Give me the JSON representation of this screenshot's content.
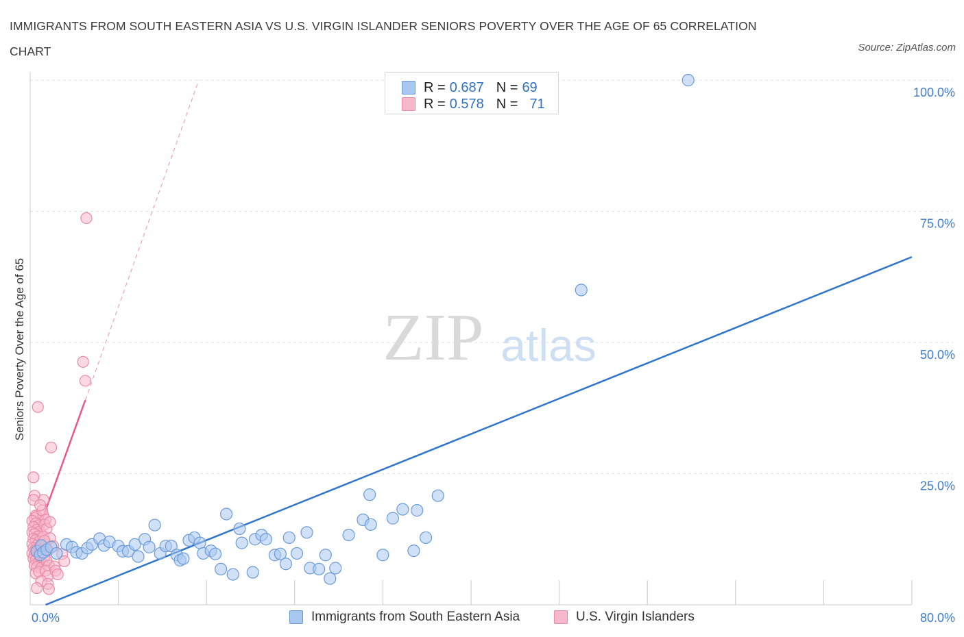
{
  "title": "IMMIGRANTS FROM SOUTH EASTERN ASIA VS U.S. VIRGIN ISLANDER SENIORS POVERTY OVER THE AGE OF 65 CORRELATION CHART",
  "source": "Source: ZipAtlas.com",
  "watermark": {
    "zip": "ZIP",
    "atlas": "atlas"
  },
  "colors": {
    "blue_fill": "#a9c8f0",
    "blue_stroke": "#6a9ad8",
    "blue_line": "#2f75cc",
    "pink_fill": "#f7b8cb",
    "pink_stroke": "#e88aa8",
    "pink_line": "#e8588a",
    "tick_label": "#3f7bc8",
    "grid": "#e2e2e2"
  },
  "legend_top": [
    {
      "r_label": "R =",
      "r_value": "0.687",
      "n_label": "N =",
      "n_value": "69"
    },
    {
      "r_label": "R =",
      "r_value": "0.578",
      "n_label": "N =",
      "n_value": "71"
    }
  ],
  "legend_bottom": [
    "Immigrants from South Eastern Asia",
    "U.S. Virgin Islanders"
  ],
  "chart_data": {
    "type": "scatter",
    "title": "IMMIGRANTS FROM SOUTH EASTERN ASIA VS U.S. VIRGIN ISLANDER SENIORS POVERTY OVER THE AGE OF 65 CORRELATION CHART",
    "xlabel": "",
    "ylabel": "Seniors Poverty Over the Age of 65",
    "xlim": [
      0,
      80
    ],
    "ylim": [
      0,
      100
    ],
    "x_tick_labels": [
      "0.0%",
      "80.0%"
    ],
    "y_ticks": [
      25,
      50,
      75,
      100
    ],
    "y_tick_labels": [
      "25.0%",
      "50.0%",
      "75.0%",
      "100.0%"
    ],
    "grid": true,
    "legend_position": "top-center",
    "series": [
      {
        "name": "Immigrants from South Eastern Asia",
        "r": 0.687,
        "n": 69,
        "trend": {
          "x0": 1.4,
          "y0": 0,
          "x1": 80,
          "y1": 66.3
        },
        "points": [
          [
            0.6,
            10.2
          ],
          [
            0.9,
            9.5
          ],
          [
            1.0,
            11.3
          ],
          [
            1.2,
            10.0
          ],
          [
            1.5,
            10.5
          ],
          [
            1.9,
            11.0
          ],
          [
            2.4,
            9.8
          ],
          [
            3.3,
            11.5
          ],
          [
            3.8,
            11.0
          ],
          [
            4.2,
            10.0
          ],
          [
            4.7,
            9.8
          ],
          [
            5.2,
            10.8
          ],
          [
            5.6,
            11.5
          ],
          [
            6.3,
            12.6
          ],
          [
            6.7,
            11.3
          ],
          [
            7.2,
            12.0
          ],
          [
            8.0,
            11.2
          ],
          [
            8.4,
            10.2
          ],
          [
            8.9,
            10.2
          ],
          [
            9.5,
            11.5
          ],
          [
            9.8,
            9.2
          ],
          [
            10.4,
            12.5
          ],
          [
            10.8,
            11.0
          ],
          [
            11.3,
            15.2
          ],
          [
            11.8,
            9.8
          ],
          [
            12.3,
            11.2
          ],
          [
            12.8,
            11.2
          ],
          [
            13.3,
            9.5
          ],
          [
            13.6,
            8.5
          ],
          [
            13.9,
            8.8
          ],
          [
            14.4,
            12.3
          ],
          [
            14.9,
            12.8
          ],
          [
            15.4,
            11.8
          ],
          [
            15.7,
            9.8
          ],
          [
            16.4,
            10.3
          ],
          [
            16.8,
            9.7
          ],
          [
            17.3,
            6.8
          ],
          [
            17.8,
            17.3
          ],
          [
            18.4,
            5.8
          ],
          [
            19.0,
            14.5
          ],
          [
            19.2,
            11.8
          ],
          [
            20.2,
            6.2
          ],
          [
            20.4,
            12.5
          ],
          [
            21.0,
            13.3
          ],
          [
            21.4,
            12.5
          ],
          [
            22.2,
            9.5
          ],
          [
            22.7,
            9.7
          ],
          [
            23.2,
            7.8
          ],
          [
            23.5,
            12.8
          ],
          [
            24.2,
            9.8
          ],
          [
            25.1,
            13.8
          ],
          [
            25.4,
            7.0
          ],
          [
            26.2,
            6.8
          ],
          [
            26.8,
            9.5
          ],
          [
            27.2,
            5.0
          ],
          [
            27.7,
            7.0
          ],
          [
            28.9,
            13.3
          ],
          [
            30.2,
            16.2
          ],
          [
            30.9,
            15.3
          ],
          [
            30.8,
            21.0
          ],
          [
            32.0,
            9.5
          ],
          [
            32.9,
            16.5
          ],
          [
            33.8,
            18.2
          ],
          [
            34.8,
            10.3
          ],
          [
            35.1,
            18.0
          ],
          [
            35.9,
            12.8
          ],
          [
            37.0,
            20.8
          ],
          [
            50.0,
            60.0
          ],
          [
            59.7,
            100.0
          ]
        ]
      },
      {
        "name": "U.S. Virgin Islanders",
        "r": 0.578,
        "n": 71,
        "trend_solid": {
          "x0": 0.2,
          "y0": 11.0,
          "x1": 5.0,
          "y1": 39.0
        },
        "trend_dashed": {
          "x0": 5.0,
          "y0": 39.0,
          "x1": 15.3,
          "y1": 100.0
        },
        "points": [
          [
            0.3,
            24.3
          ],
          [
            0.4,
            20.8
          ],
          [
            0.3,
            20.0
          ],
          [
            0.5,
            17.0
          ],
          [
            0.4,
            16.5
          ],
          [
            0.6,
            16.8
          ],
          [
            0.2,
            16.0
          ],
          [
            0.5,
            15.5
          ],
          [
            0.8,
            15.2
          ],
          [
            0.3,
            14.8
          ],
          [
            0.6,
            14.3
          ],
          [
            0.9,
            14.0
          ],
          [
            0.2,
            13.8
          ],
          [
            0.4,
            13.5
          ],
          [
            0.7,
            13.0
          ],
          [
            0.3,
            12.6
          ],
          [
            0.5,
            12.3
          ],
          [
            0.8,
            12.0
          ],
          [
            0.2,
            11.6
          ],
          [
            0.6,
            11.3
          ],
          [
            0.9,
            11.0
          ],
          [
            0.3,
            10.8
          ],
          [
            0.5,
            10.5
          ],
          [
            0.7,
            10.2
          ],
          [
            1.0,
            10.0
          ],
          [
            0.2,
            9.8
          ],
          [
            0.4,
            9.5
          ],
          [
            0.6,
            9.2
          ],
          [
            0.9,
            9.0
          ],
          [
            0.3,
            8.8
          ],
          [
            0.5,
            8.5
          ],
          [
            0.8,
            8.2
          ],
          [
            1.1,
            8.0
          ],
          [
            0.4,
            7.5
          ],
          [
            0.6,
            7.2
          ],
          [
            1.0,
            7.0
          ],
          [
            0.5,
            6.0
          ],
          [
            0.8,
            6.3
          ],
          [
            1.2,
            17.0
          ],
          [
            1.1,
            18.0
          ],
          [
            1.4,
            16.2
          ],
          [
            1.3,
            15.3
          ],
          [
            1.5,
            14.5
          ],
          [
            1.2,
            13.0
          ],
          [
            1.4,
            11.5
          ],
          [
            1.6,
            10.3
          ],
          [
            1.3,
            9.2
          ],
          [
            1.5,
            8.3
          ],
          [
            1.7,
            7.5
          ],
          [
            1.4,
            6.5
          ],
          [
            1.6,
            5.5
          ],
          [
            1.2,
            20.0
          ],
          [
            1.0,
            4.5
          ],
          [
            1.6,
            4.0
          ],
          [
            1.7,
            3.0
          ],
          [
            0.6,
            3.2
          ],
          [
            1.8,
            12.7
          ],
          [
            2.2,
            7.3
          ],
          [
            2.3,
            6.5
          ],
          [
            2.5,
            5.8
          ],
          [
            2.9,
            9.7
          ],
          [
            3.1,
            8.3
          ],
          [
            1.9,
            30.0
          ],
          [
            0.7,
            37.7
          ],
          [
            5.0,
            42.7
          ],
          [
            4.8,
            46.3
          ],
          [
            5.1,
            73.7
          ],
          [
            1.3,
            12.2
          ],
          [
            0.9,
            19.0
          ],
          [
            2.1,
            11.2
          ],
          [
            1.8,
            15.8
          ]
        ]
      }
    ]
  }
}
